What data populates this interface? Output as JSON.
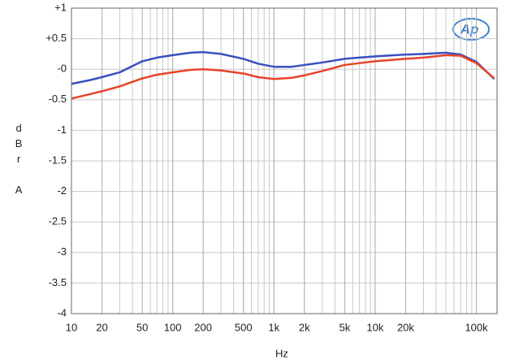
{
  "chart_data": {
    "type": "line",
    "y_label": "dBr A",
    "x_label": "Hz",
    "logo": "Ap",
    "x_log": true,
    "grid": true,
    "xlim": [
      10,
      160000
    ],
    "ylim": [
      -4,
      1
    ],
    "xticks": [
      10,
      20,
      50,
      100,
      200,
      500,
      {
        "value": 1000,
        "label": "1k"
      },
      {
        "value": 2000,
        "label": "2k"
      },
      {
        "value": 5000,
        "label": "5k"
      },
      {
        "value": 10000,
        "label": "10k"
      },
      {
        "value": 20000,
        "label": "20k"
      },
      {
        "value": 100000,
        "label": "100k"
      }
    ],
    "yticks": [
      {
        "value": 1,
        "label": "+1"
      },
      {
        "value": 0.5,
        "label": "+0.5"
      },
      {
        "value": 0,
        "label": "-0"
      },
      -0.5,
      -1,
      -1.5,
      -2,
      -2.5,
      -3,
      -3.5,
      -4
    ],
    "x": [
      10,
      15,
      20,
      30,
      50,
      70,
      100,
      150,
      200,
      300,
      500,
      700,
      1000,
      1500,
      2000,
      3000,
      5000,
      7000,
      10000,
      20000,
      30000,
      50000,
      70000,
      100000,
      150000
    ],
    "series": [
      {
        "color": "#3a4fc0",
        "values": [
          -0.24,
          -0.18,
          -0.13,
          -0.05,
          0.13,
          0.19,
          0.23,
          0.27,
          0.28,
          0.25,
          0.17,
          0.09,
          0.04,
          0.04,
          0.07,
          0.11,
          0.17,
          0.19,
          0.21,
          0.24,
          0.25,
          0.27,
          0.24,
          0.12,
          -0.16
        ]
      },
      {
        "color": "#e8432a",
        "values": [
          -0.48,
          -0.41,
          -0.36,
          -0.28,
          -0.15,
          -0.09,
          -0.05,
          -0.01,
          0,
          -0.02,
          -0.07,
          -0.13,
          -0.16,
          -0.14,
          -0.1,
          -0.03,
          0.07,
          0.1,
          0.13,
          0.17,
          0.19,
          0.23,
          0.22,
          0.1,
          -0.15
        ]
      }
    ]
  }
}
